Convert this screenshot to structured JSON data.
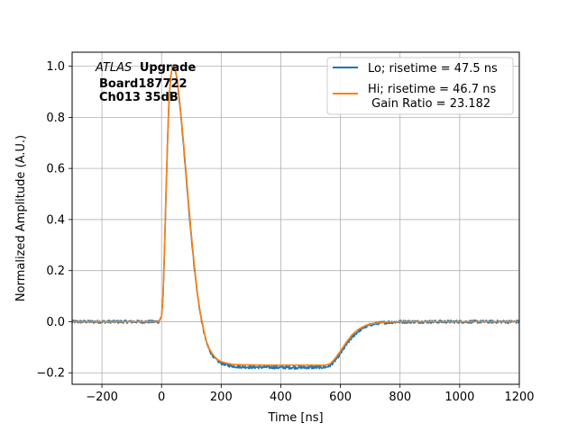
{
  "chart_data": {
    "type": "line",
    "xlabel": "Time [ns]",
    "ylabel": "Normalized Amplitude (A.U.)",
    "xlim": [
      -300,
      1200
    ],
    "ylim": [
      -0.245,
      1.055
    ],
    "xticks": [
      -200,
      0,
      200,
      400,
      600,
      800,
      1000,
      1200
    ],
    "xtick_labels": [
      "−200",
      "0",
      "200",
      "400",
      "600",
      "800",
      "1000",
      "1200"
    ],
    "yticks": [
      -0.2,
      0.0,
      0.2,
      0.4,
      0.6,
      0.8,
      1.0
    ],
    "ytick_labels": [
      "−0.2",
      "0.0",
      "0.2",
      "0.4",
      "0.6",
      "0.8",
      "1.0"
    ],
    "grid": true,
    "legend_position": "top-right",
    "annotation": {
      "line1_italic": "ATLAS",
      "line1_bold": "Upgrade",
      "line2": "Board187722",
      "line3": "Ch013 35dB"
    },
    "series": [
      {
        "name": "Lo; risetime = 47.5 ns",
        "color": "#1f77b4",
        "noisy": true,
        "x": [
          -300,
          -10,
          0,
          5,
          10,
          15,
          20,
          25,
          30,
          35,
          40,
          45,
          50,
          55,
          60,
          65,
          70,
          80,
          90,
          100,
          110,
          120,
          130,
          140,
          150,
          160,
          170,
          180,
          190,
          200,
          220,
          240,
          260,
          280,
          300,
          350,
          400,
          450,
          500,
          550,
          565,
          580,
          600,
          620,
          640,
          660,
          680,
          700,
          720,
          740,
          760,
          800,
          1200
        ],
        "y": [
          0.0,
          0.0,
          0.02,
          0.1,
          0.28,
          0.5,
          0.7,
          0.86,
          0.95,
          0.99,
          1.0,
          0.99,
          0.96,
          0.92,
          0.86,
          0.8,
          0.74,
          0.6,
          0.46,
          0.33,
          0.21,
          0.11,
          0.03,
          -0.03,
          -0.08,
          -0.11,
          -0.13,
          -0.145,
          -0.155,
          -0.162,
          -0.17,
          -0.174,
          -0.176,
          -0.177,
          -0.178,
          -0.178,
          -0.179,
          -0.179,
          -0.179,
          -0.178,
          -0.172,
          -0.155,
          -0.125,
          -0.09,
          -0.06,
          -0.037,
          -0.022,
          -0.012,
          -0.007,
          -0.004,
          -0.002,
          0.0,
          0.0
        ]
      },
      {
        "name": "Hi; risetime = 46.7 ns\n Gain Ratio = 23.182",
        "color": "#ff7f0e",
        "noisy": false,
        "x": [
          -300,
          -10,
          0,
          5,
          10,
          15,
          20,
          25,
          30,
          35,
          40,
          45,
          50,
          55,
          60,
          65,
          70,
          80,
          90,
          100,
          110,
          120,
          130,
          140,
          150,
          160,
          170,
          180,
          190,
          200,
          220,
          240,
          260,
          280,
          300,
          350,
          400,
          450,
          500,
          550,
          565,
          580,
          600,
          620,
          640,
          660,
          680,
          700,
          720,
          740,
          760,
          800,
          1200
        ],
        "y": [
          0.0,
          0.0,
          0.02,
          0.1,
          0.29,
          0.51,
          0.71,
          0.87,
          0.955,
          0.99,
          1.0,
          0.99,
          0.965,
          0.925,
          0.87,
          0.81,
          0.75,
          0.615,
          0.475,
          0.34,
          0.22,
          0.115,
          0.035,
          -0.025,
          -0.075,
          -0.105,
          -0.125,
          -0.14,
          -0.15,
          -0.156,
          -0.163,
          -0.167,
          -0.168,
          -0.169,
          -0.169,
          -0.17,
          -0.17,
          -0.17,
          -0.17,
          -0.17,
          -0.165,
          -0.147,
          -0.115,
          -0.08,
          -0.05,
          -0.03,
          -0.017,
          -0.009,
          -0.005,
          -0.003,
          -0.001,
          0.0,
          0.0
        ]
      }
    ]
  }
}
